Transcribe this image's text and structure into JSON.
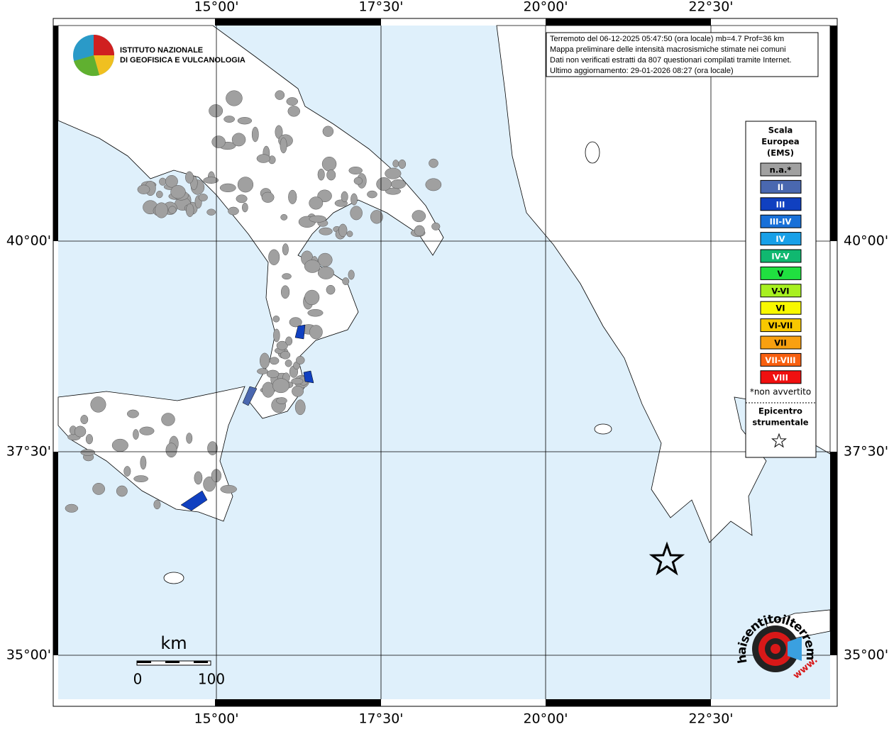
{
  "header": {
    "logo_lines": [
      "ISTITUTO NAZIONALE",
      "DI GEOFISICA E VULCANOLOGIA"
    ]
  },
  "info_box": {
    "lines": [
      "Terremoto del 06-12-2025 05:47:50 (ora locale) mb=4.7 Prof=36 km",
      "Mappa preliminare delle intensità macrosismiche stimate nei comuni",
      "Dati non verificati estratti da 807 questionari compilati tramite Internet.",
      "Ultimo aggiornamento: 29-01-2026 08:27 (ora locale)"
    ]
  },
  "axes": {
    "longitude_labels": [
      "15°00'",
      "17°30'",
      "20°00'",
      "22°30'"
    ],
    "latitude_labels": [
      "40°00'",
      "37°30'",
      "35°00'"
    ]
  },
  "legend": {
    "title_lines": [
      "Scala",
      "Europea",
      "(EMS)"
    ],
    "items": [
      {
        "label": "n.a.*",
        "color": "#a0a0a0"
      },
      {
        "label": "II",
        "color": "#4a68b0"
      },
      {
        "label": "III",
        "color": "#1040c0"
      },
      {
        "label": "III-IV",
        "color": "#1870d8"
      },
      {
        "label": "IV",
        "color": "#18a0e8"
      },
      {
        "label": "IV-V",
        "color": "#10b870"
      },
      {
        "label": "V",
        "color": "#20e040"
      },
      {
        "label": "V-VI",
        "color": "#a8f020"
      },
      {
        "label": "VI",
        "color": "#f8f800"
      },
      {
        "label": "VI-VII",
        "color": "#f8c800"
      },
      {
        "label": "VII",
        "color": "#f8a010"
      },
      {
        "label": "VII-VIII",
        "color": "#f86010"
      },
      {
        "label": "VIII",
        "color": "#f01010"
      }
    ],
    "note": "*non avvertito",
    "epicenter_lines": [
      "Epicentro",
      "strumentale"
    ]
  },
  "scale_bar": {
    "unit": "km",
    "labels": [
      "0",
      "100"
    ]
  },
  "footer_logo": {
    "url": "haisentitoilterremoto.it",
    "prefix": "www."
  }
}
